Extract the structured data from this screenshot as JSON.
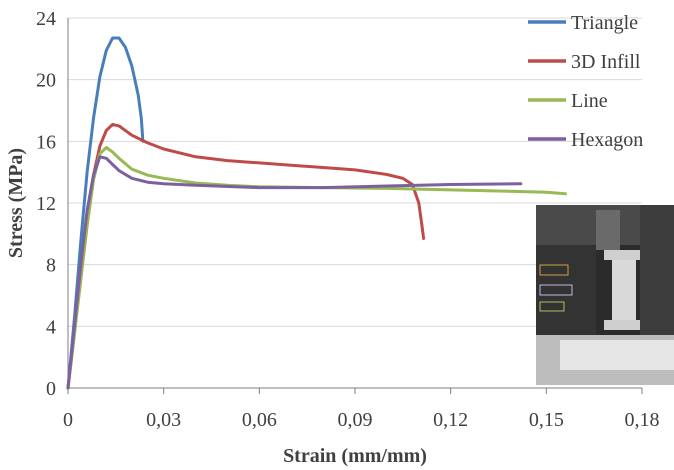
{
  "chart_data": {
    "type": "line",
    "title": "",
    "xlabel": "Strain (mm/mm)",
    "ylabel": "Stress (MPa)",
    "xlim": [
      0,
      0.18
    ],
    "ylim": [
      0,
      24
    ],
    "x_ticks": [
      "0",
      "0,03",
      "0,06",
      "0,09",
      "0,12",
      "0,15",
      "0,18"
    ],
    "y_ticks": [
      "0",
      "4",
      "8",
      "12",
      "16",
      "20",
      "24"
    ],
    "grid": "horizontal",
    "legend_position": "top-right",
    "series": [
      {
        "name": "Triangle",
        "color": "#4a7ebb",
        "points": [
          [
            0,
            0
          ],
          [
            0.002,
            4.5
          ],
          [
            0.004,
            9.5
          ],
          [
            0.006,
            14
          ],
          [
            0.008,
            17.5
          ],
          [
            0.01,
            20.2
          ],
          [
            0.012,
            21.9
          ],
          [
            0.014,
            22.7
          ],
          [
            0.016,
            22.7
          ],
          [
            0.018,
            22.1
          ],
          [
            0.02,
            20.9
          ],
          [
            0.022,
            19.0
          ],
          [
            0.023,
            17.5
          ],
          [
            0.0235,
            16.0
          ]
        ]
      },
      {
        "name": "3D Infill",
        "color": "#be4b48",
        "points": [
          [
            0,
            0
          ],
          [
            0.002,
            3.5
          ],
          [
            0.004,
            7.5
          ],
          [
            0.006,
            11
          ],
          [
            0.008,
            13.8
          ],
          [
            0.01,
            15.7
          ],
          [
            0.012,
            16.7
          ],
          [
            0.014,
            17.1
          ],
          [
            0.016,
            17.0
          ],
          [
            0.02,
            16.4
          ],
          [
            0.025,
            15.9
          ],
          [
            0.03,
            15.5
          ],
          [
            0.04,
            15.0
          ],
          [
            0.05,
            14.75
          ],
          [
            0.06,
            14.6
          ],
          [
            0.07,
            14.45
          ],
          [
            0.08,
            14.3
          ],
          [
            0.09,
            14.15
          ],
          [
            0.1,
            13.85
          ],
          [
            0.105,
            13.6
          ],
          [
            0.108,
            13.2
          ],
          [
            0.11,
            12.0
          ],
          [
            0.111,
            10.5
          ],
          [
            0.1115,
            9.7
          ]
        ]
      },
      {
        "name": "Line",
        "color": "#98b954",
        "points": [
          [
            0,
            0
          ],
          [
            0.002,
            3.5
          ],
          [
            0.004,
            7.0
          ],
          [
            0.006,
            10.5
          ],
          [
            0.008,
            13.5
          ],
          [
            0.01,
            15.2
          ],
          [
            0.012,
            15.6
          ],
          [
            0.014,
            15.3
          ],
          [
            0.016,
            14.9
          ],
          [
            0.02,
            14.2
          ],
          [
            0.025,
            13.8
          ],
          [
            0.03,
            13.6
          ],
          [
            0.04,
            13.3
          ],
          [
            0.05,
            13.15
          ],
          [
            0.06,
            13.05
          ],
          [
            0.08,
            13.0
          ],
          [
            0.1,
            12.95
          ],
          [
            0.12,
            12.85
          ],
          [
            0.14,
            12.75
          ],
          [
            0.15,
            12.7
          ],
          [
            0.156,
            12.6
          ]
        ]
      },
      {
        "name": "Hexagon",
        "color": "#7d60a0",
        "points": [
          [
            0,
            0
          ],
          [
            0.002,
            4.0
          ],
          [
            0.004,
            8.0
          ],
          [
            0.006,
            11.5
          ],
          [
            0.008,
            13.8
          ],
          [
            0.01,
            15.0
          ],
          [
            0.012,
            14.9
          ],
          [
            0.014,
            14.5
          ],
          [
            0.016,
            14.1
          ],
          [
            0.02,
            13.6
          ],
          [
            0.025,
            13.35
          ],
          [
            0.03,
            13.25
          ],
          [
            0.04,
            13.15
          ],
          [
            0.06,
            13.0
          ],
          [
            0.08,
            13.0
          ],
          [
            0.1,
            13.1
          ],
          [
            0.12,
            13.2
          ],
          [
            0.142,
            13.25
          ]
        ]
      }
    ]
  },
  "inset_photo": {
    "description_free": true
  }
}
